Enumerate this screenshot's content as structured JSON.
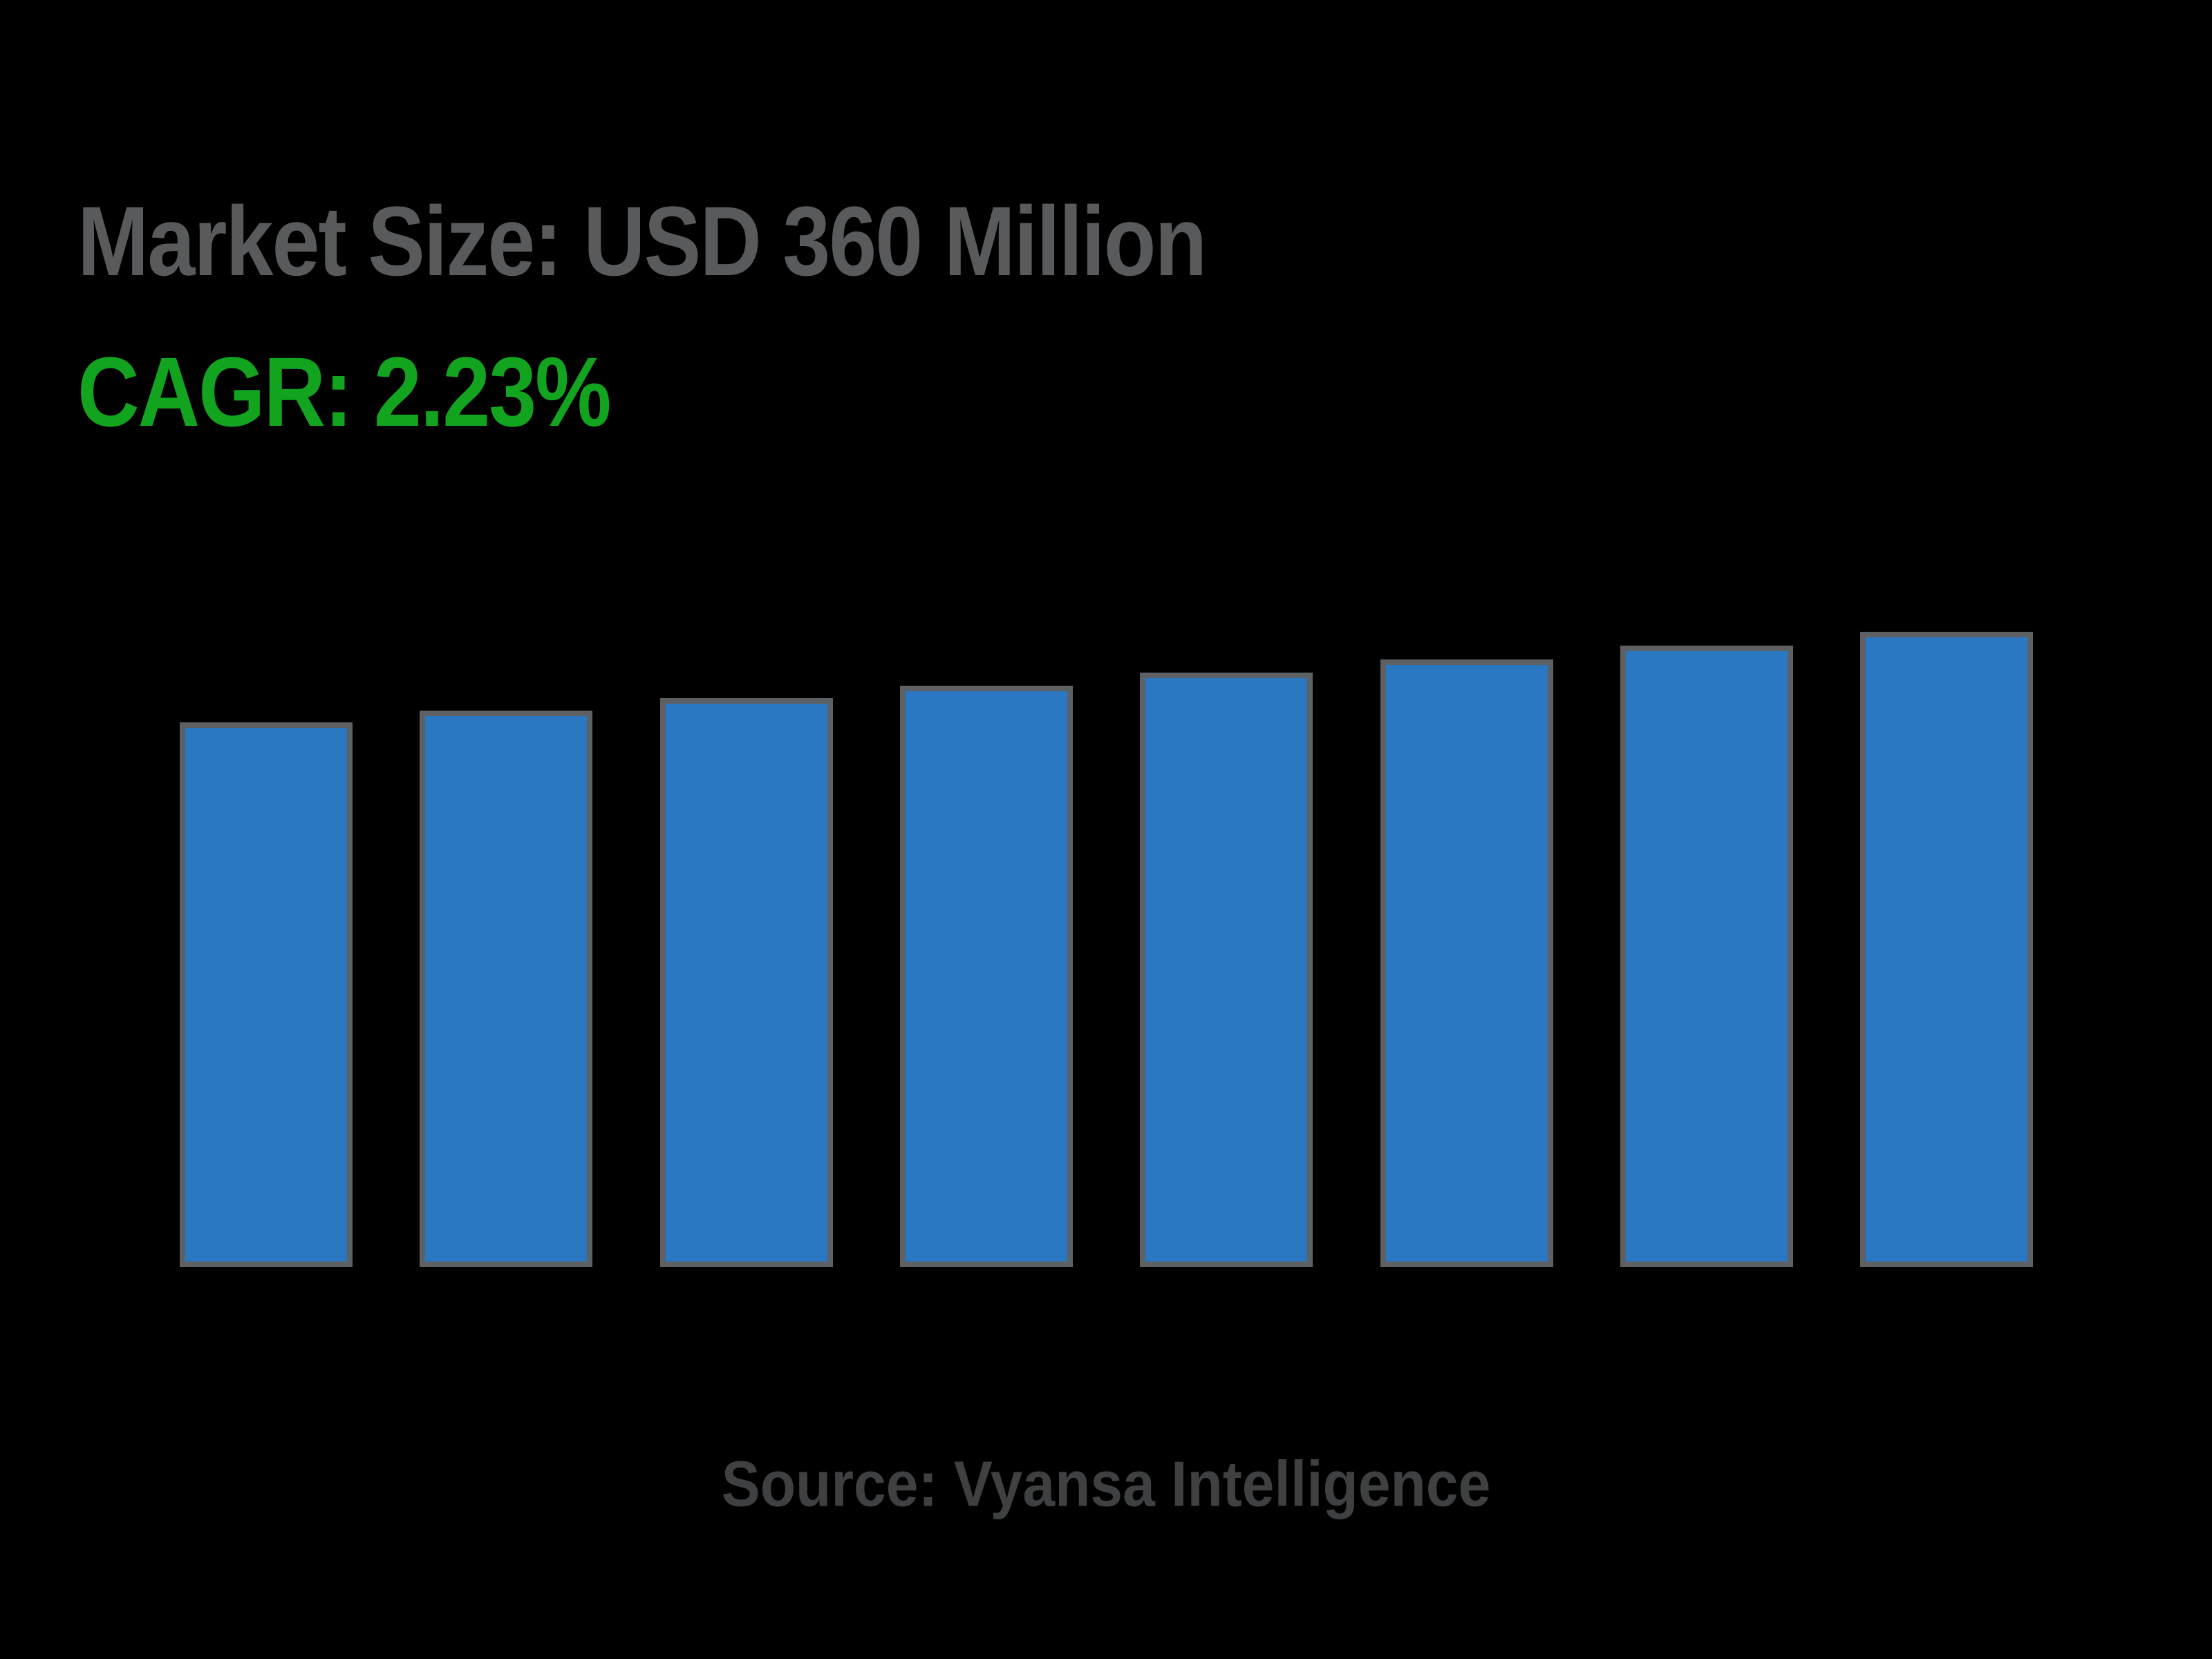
{
  "page": {
    "background": "#000000"
  },
  "title": {
    "text": "Market Size: USD 360 Million",
    "color": "#595A5C"
  },
  "cagr": {
    "text": "CAGR: 2.23%",
    "color": "#12A41F"
  },
  "source": {
    "text": "Source: Vyansa Intelligence",
    "color": "#3E4042"
  },
  "chart_data": {
    "type": "bar",
    "num_bars": 8,
    "values": [
      308.6,
      315.4,
      322.5,
      329.6,
      337.0,
      344.5,
      352.2,
      360.0
    ],
    "note": "No axis ticks, gridlines or category labels are rendered; values estimated from bar heights, final bar = USD 360 Million growing at CAGR 2.23%",
    "title": "Market Size: USD 360 Million",
    "xlabel": "",
    "ylabel": "",
    "ylim": [
      0,
      360
    ],
    "grid": false,
    "legend": false,
    "x_labels_visible": false,
    "y_labels_visible": false,
    "bar_fill": "#2B78C2",
    "bar_border": "#5E6164",
    "background": "#000000"
  }
}
